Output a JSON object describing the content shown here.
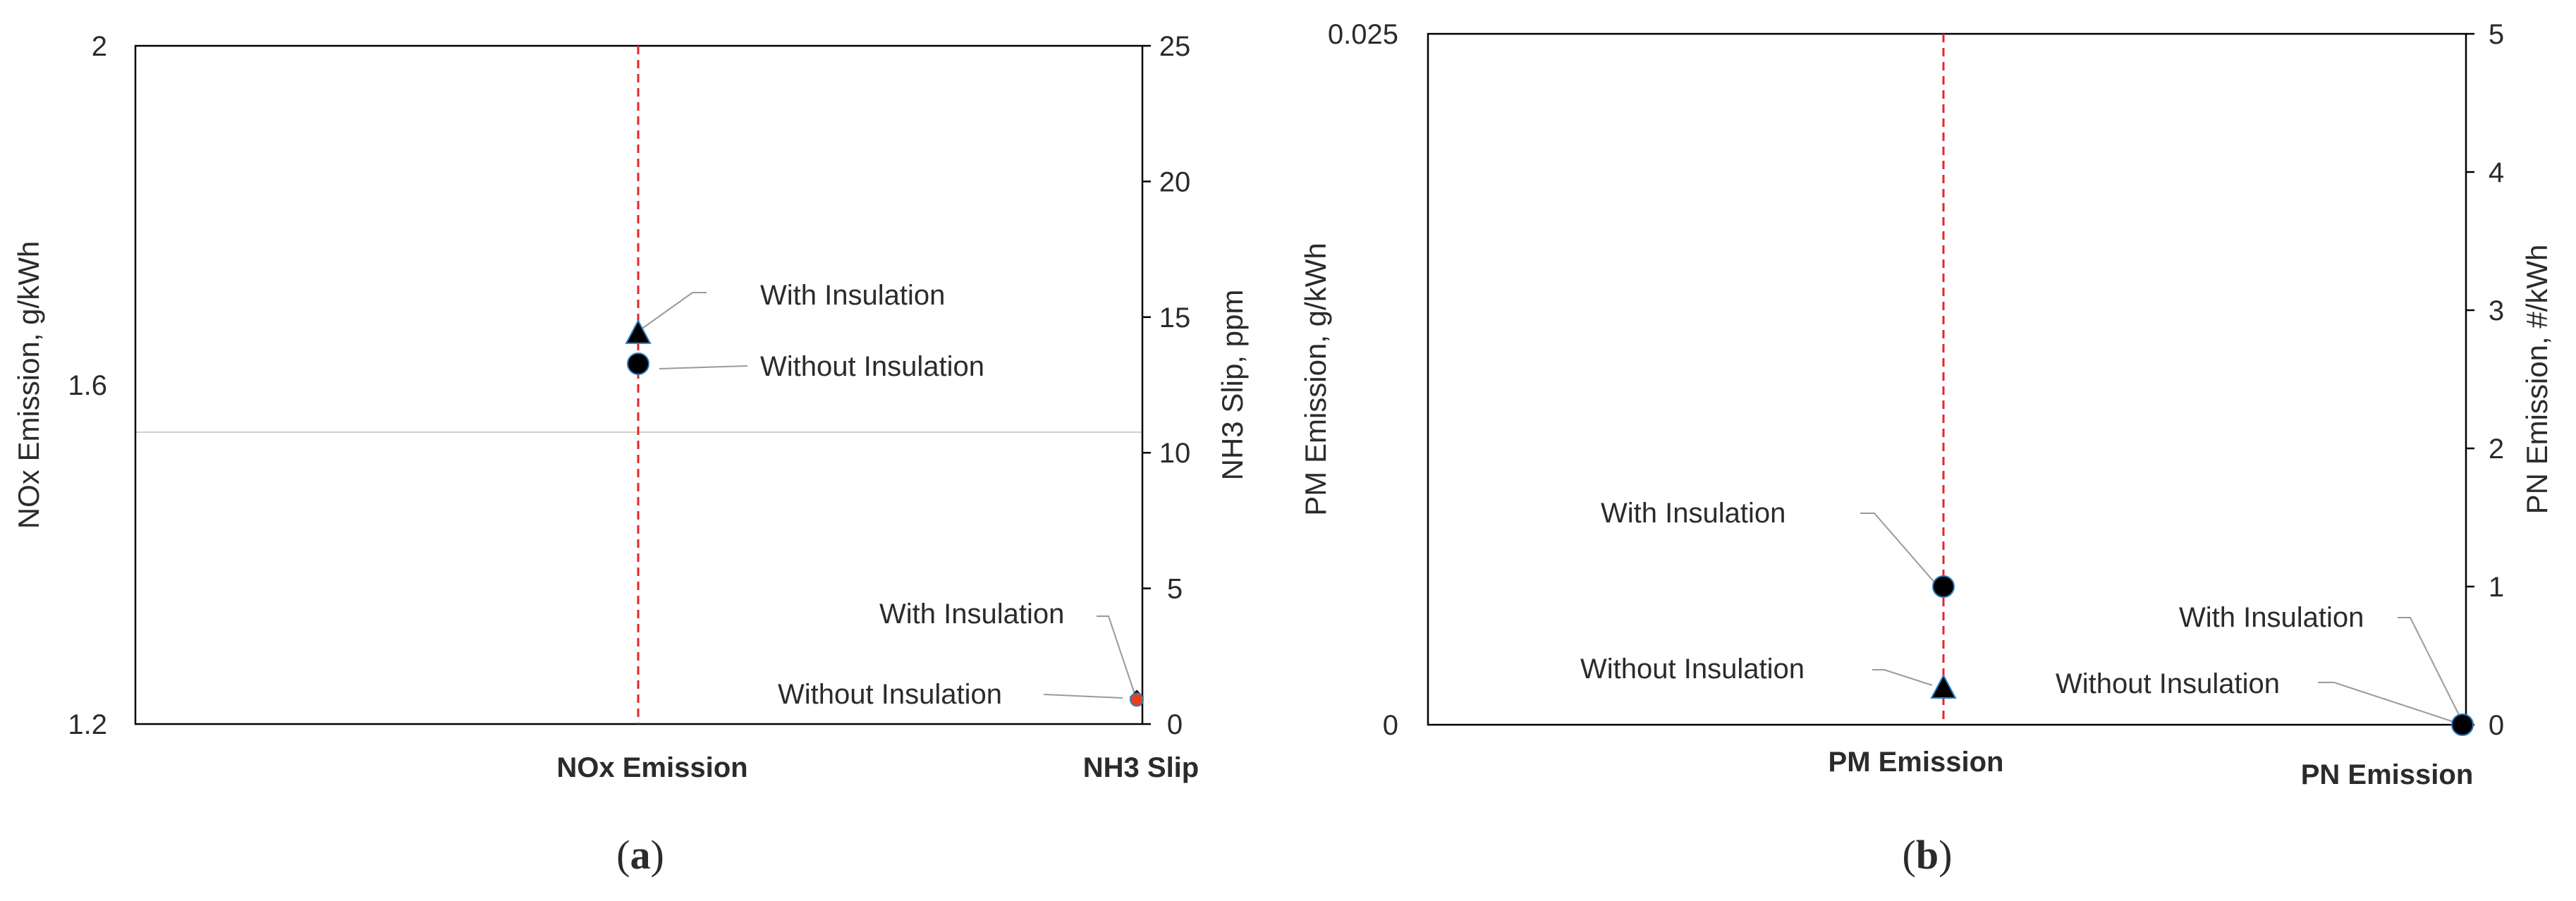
{
  "chart_data": [
    {
      "type": "scatter",
      "panel_label": "a",
      "categories": [
        "NOx Emission",
        "NH3 Slip"
      ],
      "ylabel": "NOx Emission, g/kWh",
      "ylim": [
        1.2,
        2
      ],
      "yticks": [
        "1.2",
        "1.6",
        "2"
      ],
      "y2label": "NH3 Slip, ppm",
      "y2lim": [
        0,
        25
      ],
      "y2ticks": [
        "0",
        "5",
        "10",
        "15",
        "20",
        "25"
      ],
      "grid_y": [
        1.6
      ],
      "series": [
        {
          "name": "With Insulation",
          "category": "NOx Emission",
          "axis": "left",
          "value": 1.66,
          "marker": "triangle",
          "color": "#000000"
        },
        {
          "name": "Without Insulation",
          "category": "NOx Emission",
          "axis": "left",
          "value": 1.625,
          "marker": "circle",
          "color": "#000000"
        },
        {
          "name": "With Insulation",
          "category": "NH3 Slip",
          "axis": "right",
          "value": 1.0,
          "marker": "diamond",
          "color": "#000000"
        },
        {
          "name": "Without Insulation",
          "category": "NH3 Slip",
          "axis": "right",
          "value": 0.9,
          "marker": "circle",
          "color": "#e8401c"
        }
      ],
      "annotations": [
        "With Insulation",
        "Without Insulation",
        "With Insulation",
        "Without Insulation"
      ]
    },
    {
      "type": "scatter",
      "panel_label": "b",
      "categories": [
        "PM Emission",
        "PN Emission"
      ],
      "ylabel": "PM Emission, g/kWh",
      "ylim": [
        0,
        0.025
      ],
      "yticks": [
        "0",
        "0.025"
      ],
      "y2label": "PN Emission, #/kWh",
      "y2lim": [
        0,
        5
      ],
      "y2ticks": [
        "0",
        "1",
        "2",
        "3",
        "4",
        "5"
      ],
      "series": [
        {
          "name": "With Insulation",
          "category": "PM Emission",
          "axis": "left",
          "value": 0.005,
          "marker": "circle",
          "color": "#000000"
        },
        {
          "name": "Without Insulation",
          "category": "PM Emission",
          "axis": "left",
          "value": 0.0013,
          "marker": "triangle",
          "color": "#000000"
        },
        {
          "name": "With Insulation",
          "category": "PN Emission",
          "axis": "right",
          "value": 0.0,
          "marker": "diamond",
          "color": "#000000"
        },
        {
          "name": "Without Insulation",
          "category": "PN Emission",
          "axis": "right",
          "value": 0.0,
          "marker": "circle",
          "color": "#000000"
        }
      ],
      "annotations": [
        "With Insulation",
        "Without Insulation",
        "With Insulation",
        "Without Insulation"
      ]
    }
  ],
  "colors": {
    "axis": "#000000",
    "grid": "#d0d0d0",
    "reference_line": "#e3262a",
    "leader": "#9a9a9a",
    "marker_edge": "#2f7fc1"
  }
}
